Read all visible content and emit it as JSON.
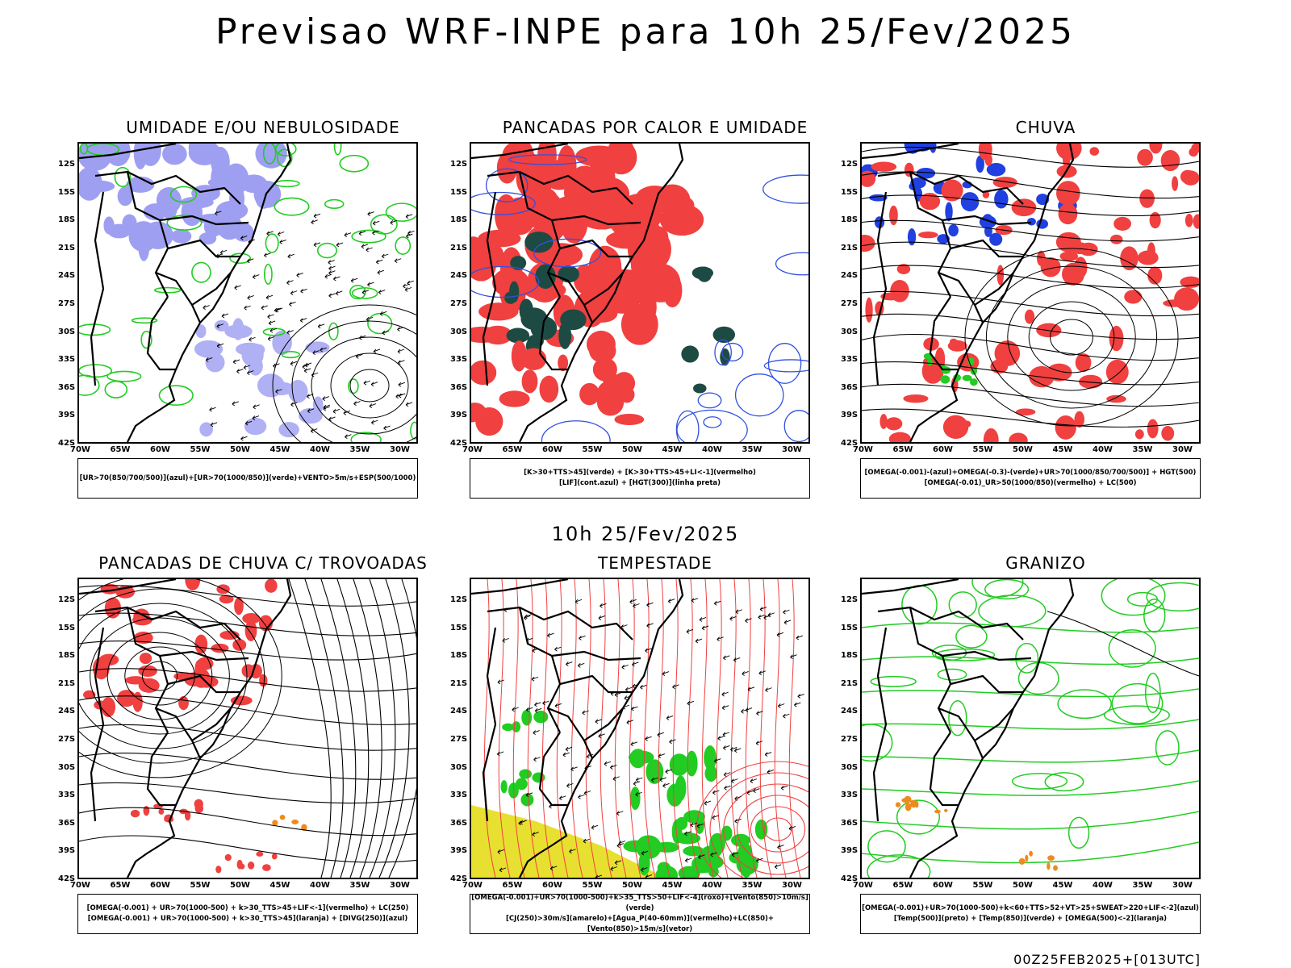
{
  "title": "Previsao WRF-INPE  para 10h 25/Fev/2025",
  "subtitle": "10h 25/Fev/2025",
  "footer": "00Z25FEB2025+[013UTC]",
  "axes": {
    "lat_labels": [
      "12S",
      "15S",
      "18S",
      "21S",
      "24S",
      "27S",
      "30S",
      "33S",
      "36S",
      "39S",
      "42S"
    ],
    "lon_labels": [
      "70W",
      "65W",
      "60W",
      "55W",
      "50W",
      "45W",
      "40W",
      "35W",
      "30W"
    ]
  },
  "colors": {
    "blue_fill": "#8f8ff0",
    "green_line": "#22cc22",
    "red_fill": "#f04040",
    "dark_teal": "#1e4a44",
    "yellow_fill": "#e8e030",
    "orange": "#f08a1e",
    "blue_line": "#3050e0",
    "dark_blue": "#2040e0",
    "bright_green": "#22cc22"
  },
  "panels": [
    {
      "id": "umidade",
      "title": "UMIDADE E/OU NEBULOSIDADE",
      "legend": [
        "[UR>70(850/700/500)](azul)+[UR>70(1000/850)](verde)+VENTO>5m/s+ESP(500/1000)"
      ]
    },
    {
      "id": "pancadas-calor",
      "title": "PANCADAS POR CALOR E UMIDADE",
      "legend": [
        "[K>30+TTS>45](verde) + [K>30+TTS>45+LI<-1](vermelho)",
        "[LIF](cont.azul) + [HGT(300)](linha preta)"
      ]
    },
    {
      "id": "chuva",
      "title": "CHUVA",
      "legend": [
        "[OMEGA(-0.001)-(azul)+OMEGA(-0.3)-(verde)+UR>70(1000/850/700/500)] + HGT(500)",
        "[OMEGA(-0.01)_UR>50(1000/850)(vermelho) + LC(500)"
      ]
    },
    {
      "id": "trovoadas",
      "title": "PANCADAS DE CHUVA C/ TROVOADAS",
      "legend": [
        "[OMEGA(-0.001) + UR>70(1000-500) + k>30_TTS>45+LIF<-1](vermelho) + LC(250)",
        "[OMEGA(-0.001) + UR>70(1000-500) + k>30_TTS>45](laranja) + [DIVG(250)](azul)"
      ]
    },
    {
      "id": "tempestade",
      "title": "TEMPESTADE",
      "legend": [
        "[OMEGA(-0.001)+UR>70(1000-500)+k>35_TTS>50+LIF<-4](roxo)+[Vento(850)>10m/s](verde)",
        "[CJ(250)>30m/s](amarelo)+[Agua_P(40-60mm)](vermelho)+LC(850)+[Vento(850)>15m/s](vetor)"
      ]
    },
    {
      "id": "granizo",
      "title": "GRANIZO",
      "legend": [
        "[OMEGA(-0.001)+UR>70(1000-500)+k<60+TTS>52+VT>25+SWEAT>220+LIF<-2](azul)",
        "[Temp(500)](preto) + [Temp(850)](verde) + [OMEGA(500)<-2](laranja)"
      ]
    }
  ]
}
